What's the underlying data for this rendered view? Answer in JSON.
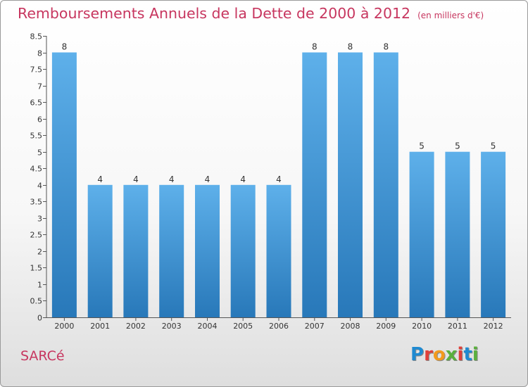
{
  "header": {
    "title": "Remboursements Annuels de la Dette de 2000 à 2012",
    "unit": "(en milliers d'€)"
  },
  "footer": {
    "place": "SARCé",
    "logo": "Proxiti"
  },
  "colors": {
    "accent": "#c7365f",
    "bar_top": "#5eb0ea",
    "bar_bottom": "#2878b9",
    "logo_letters": [
      "#1f8ad1",
      "#e0403a",
      "#f29a1c",
      "#5ab03d",
      "#e0403a",
      "#1f8ad1",
      "#5ab03d"
    ]
  },
  "chart_data": {
    "type": "bar",
    "categories": [
      "2000",
      "2001",
      "2002",
      "2003",
      "2004",
      "2005",
      "2006",
      "2007",
      "2008",
      "2009",
      "2010",
      "2011",
      "2012"
    ],
    "values": [
      8,
      4,
      4,
      4,
      4,
      4,
      4,
      8,
      8,
      8,
      5,
      5,
      5
    ],
    "data_labels": [
      "8",
      "4",
      "4",
      "4",
      "4",
      "4",
      "4",
      "8",
      "8",
      "8",
      "5",
      "5",
      "5"
    ],
    "ylim": [
      0,
      8.5
    ],
    "yticks": [
      0,
      0.5,
      1,
      1.5,
      2,
      2.5,
      3,
      3.5,
      4,
      4.5,
      5,
      5.5,
      6,
      6.5,
      7,
      7.5,
      8,
      8.5
    ],
    "ytick_labels": [
      "0",
      "0.5",
      "1",
      "1.5",
      "2",
      "2.5",
      "3",
      "3.5",
      "4",
      "4.5",
      "5",
      "5.5",
      "6",
      "6.5",
      "7",
      "7.5",
      "8",
      "8.5"
    ],
    "xlabel": "",
    "ylabel": "",
    "grid": false,
    "legend": "none"
  }
}
